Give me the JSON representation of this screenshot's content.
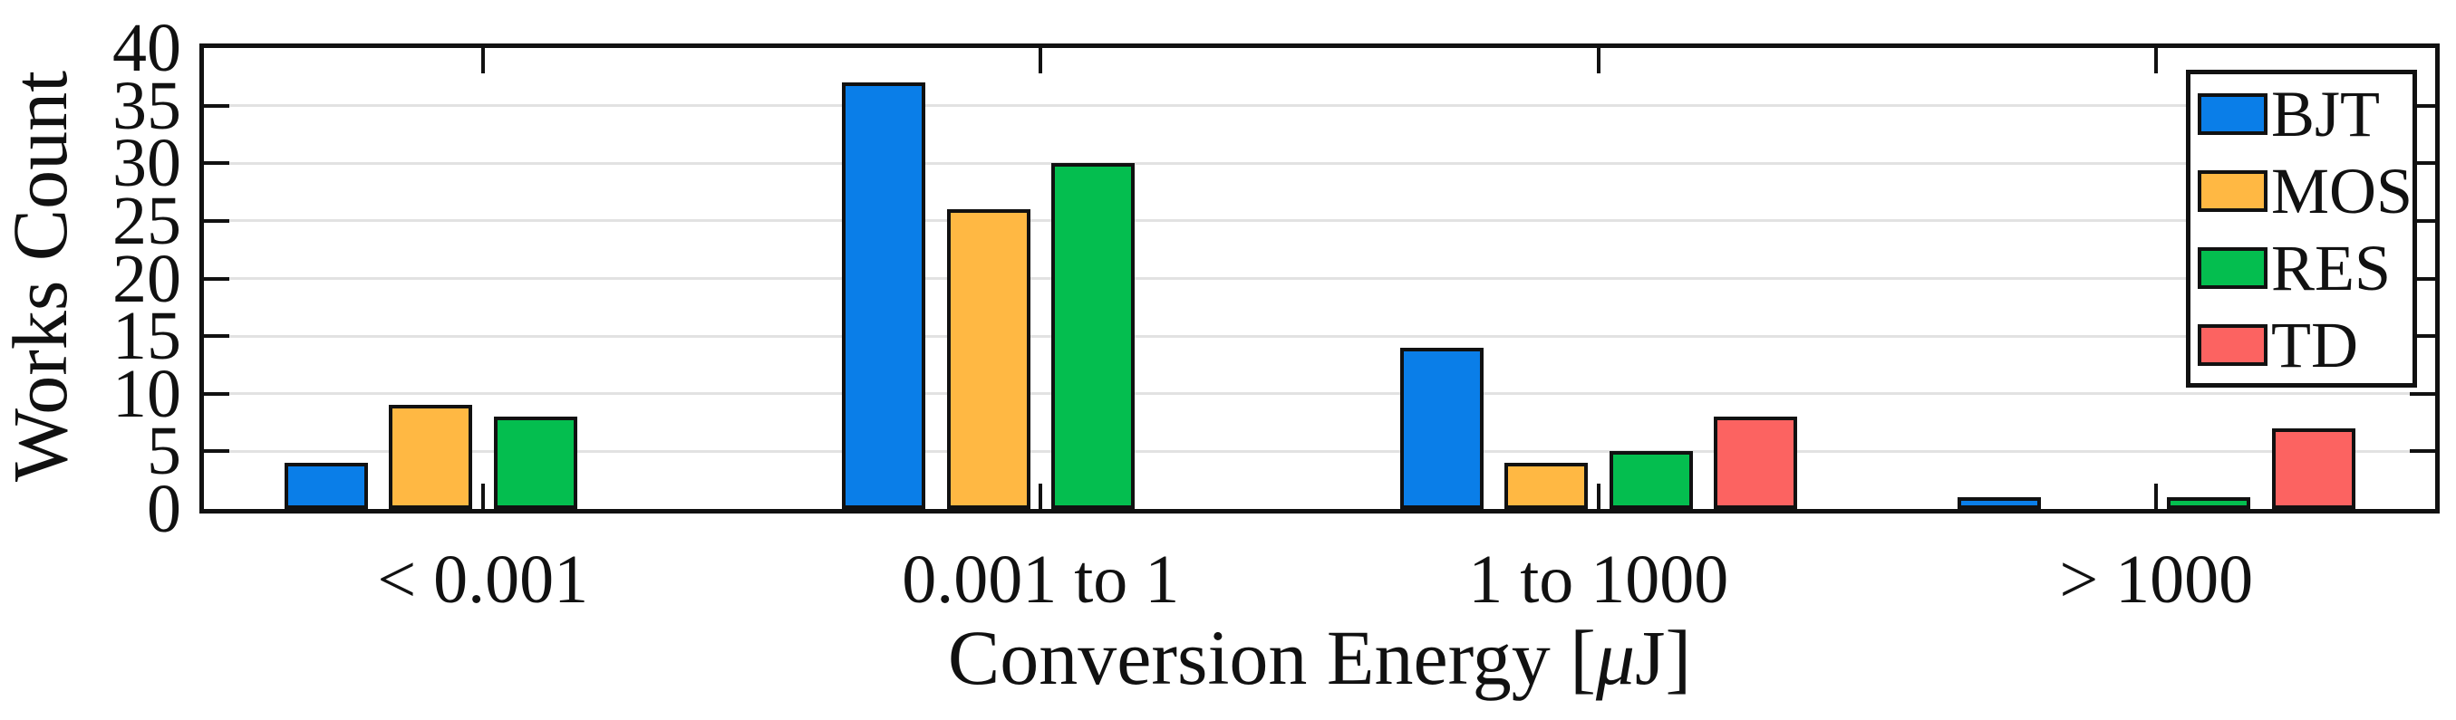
{
  "figure": {
    "background": "#ffffff",
    "axis_color": "#111111",
    "grid_color": "#e2e2e2",
    "text_color": "#111111"
  },
  "chart_data": {
    "type": "bar",
    "title": "",
    "xlabel": "Conversion Energy [μJ]",
    "xlabel_parts": {
      "prefix": "Conversion Energy [",
      "mu": "μ",
      "suffix": "J]"
    },
    "ylabel": "Works Count",
    "categories": [
      "< 0.001",
      "0.001 to 1",
      "1 to 1000",
      "> 1000"
    ],
    "series": [
      {
        "name": "BJT",
        "color": "#0a7ee8",
        "values": [
          4,
          37,
          14,
          1
        ]
      },
      {
        "name": "MOS",
        "color": "#ffb843",
        "values": [
          9,
          26,
          4,
          0
        ]
      },
      {
        "name": "RES",
        "color": "#04be4f",
        "values": [
          8,
          30,
          5,
          1
        ]
      },
      {
        "name": "TD",
        "color": "#fc6361",
        "values": [
          0,
          0,
          8,
          7
        ]
      }
    ],
    "ylim": [
      0,
      40
    ],
    "yticks": [
      0,
      5,
      10,
      15,
      20,
      25,
      30,
      35,
      40
    ],
    "grid": "horizontal",
    "ticks": "mirrored-inward",
    "legend_position": "top-right",
    "legend_entries": [
      "BJT",
      "MOS",
      "RES",
      "TD"
    ]
  }
}
